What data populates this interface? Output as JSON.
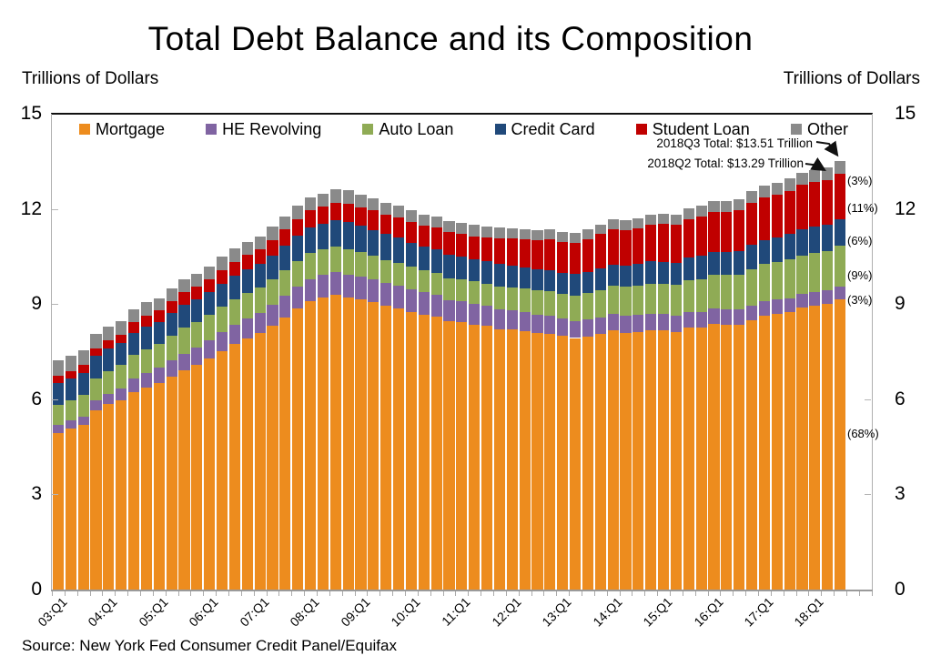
{
  "header": {
    "title": "Total Debt Balance and its Composition",
    "left_axis_label": "Trillions of Dollars",
    "right_axis_label": "Trillions of Dollars"
  },
  "source": "Source: New York Fed Consumer Credit Panel/Equifax",
  "chart_data": {
    "type": "bar",
    "stacked": true,
    "title": "Total Debt Balance and its Composition",
    "ylabel": "Trillions of Dollars",
    "ylim": [
      0,
      15
    ],
    "yticks": [
      0,
      3,
      6,
      9,
      12,
      15
    ],
    "grid": false,
    "legend_position": "top",
    "categories": [
      "03:Q1",
      "03:Q2",
      "03:Q3",
      "03:Q4",
      "04:Q1",
      "04:Q2",
      "04:Q3",
      "04:Q4",
      "05:Q1",
      "05:Q2",
      "05:Q3",
      "05:Q4",
      "06:Q1",
      "06:Q2",
      "06:Q3",
      "06:Q4",
      "07:Q1",
      "07:Q2",
      "07:Q3",
      "07:Q4",
      "08:Q1",
      "08:Q2",
      "08:Q3",
      "08:Q4",
      "09:Q1",
      "09:Q2",
      "09:Q3",
      "09:Q4",
      "10:Q1",
      "10:Q2",
      "10:Q3",
      "10:Q4",
      "11:Q1",
      "11:Q2",
      "11:Q3",
      "11:Q4",
      "12:Q1",
      "12:Q2",
      "12:Q3",
      "12:Q4",
      "13:Q1",
      "13:Q2",
      "13:Q3",
      "13:Q4",
      "14:Q1",
      "14:Q2",
      "14:Q3",
      "14:Q4",
      "15:Q1",
      "15:Q2",
      "15:Q3",
      "15:Q4",
      "16:Q1",
      "16:Q2",
      "16:Q3",
      "16:Q4",
      "17:Q1",
      "17:Q2",
      "17:Q3",
      "17:Q4",
      "18:Q1",
      "18:Q2",
      "18:Q3"
    ],
    "x_tick_labels_shown": [
      "03:Q1",
      "04:Q1",
      "05:Q1",
      "06:Q1",
      "07:Q1",
      "08:Q1",
      "09:Q1",
      "10:Q1",
      "11:Q1",
      "12:Q1",
      "13:Q1",
      "14:Q1",
      "15:Q1",
      "16:Q1",
      "17:Q1",
      "18:Q1"
    ],
    "series": [
      {
        "name": "Mortgage",
        "color": "#ED8C1E",
        "share_label": "(68%)",
        "values": [
          4.94,
          5.08,
          5.18,
          5.66,
          5.84,
          5.97,
          6.21,
          6.36,
          6.5,
          6.7,
          6.9,
          7.07,
          7.29,
          7.52,
          7.73,
          7.92,
          8.1,
          8.33,
          8.58,
          8.85,
          9.09,
          9.2,
          9.29,
          9.22,
          9.15,
          9.06,
          8.94,
          8.85,
          8.76,
          8.67,
          8.61,
          8.45,
          8.43,
          8.36,
          8.31,
          8.21,
          8.19,
          8.15,
          8.09,
          8.06,
          7.99,
          7.93,
          7.98,
          8.05,
          8.17,
          8.1,
          8.13,
          8.17,
          8.17,
          8.12,
          8.26,
          8.25,
          8.37,
          8.36,
          8.35,
          8.48,
          8.63,
          8.69,
          8.74,
          8.88,
          8.94,
          9.0,
          9.14
        ]
      },
      {
        "name": "HE Revolving",
        "color": "#8064A2",
        "share_label": "(3%)",
        "values": [
          0.24,
          0.26,
          0.27,
          0.3,
          0.33,
          0.37,
          0.43,
          0.47,
          0.5,
          0.53,
          0.54,
          0.56,
          0.57,
          0.59,
          0.61,
          0.62,
          0.63,
          0.65,
          0.67,
          0.69,
          0.7,
          0.71,
          0.71,
          0.71,
          0.71,
          0.71,
          0.72,
          0.72,
          0.71,
          0.7,
          0.69,
          0.67,
          0.66,
          0.64,
          0.63,
          0.62,
          0.61,
          0.59,
          0.57,
          0.56,
          0.55,
          0.54,
          0.53,
          0.53,
          0.53,
          0.53,
          0.52,
          0.51,
          0.51,
          0.5,
          0.49,
          0.49,
          0.49,
          0.48,
          0.47,
          0.47,
          0.46,
          0.45,
          0.45,
          0.44,
          0.44,
          0.43,
          0.42
        ]
      },
      {
        "name": "Auto Loan",
        "color": "#8FAB55",
        "share_label": "(9%)",
        "values": [
          0.64,
          0.62,
          0.68,
          0.7,
          0.72,
          0.74,
          0.75,
          0.73,
          0.73,
          0.77,
          0.81,
          0.79,
          0.79,
          0.81,
          0.81,
          0.81,
          0.79,
          0.81,
          0.82,
          0.82,
          0.82,
          0.81,
          0.81,
          0.79,
          0.77,
          0.75,
          0.73,
          0.72,
          0.7,
          0.69,
          0.69,
          0.7,
          0.7,
          0.71,
          0.71,
          0.73,
          0.73,
          0.75,
          0.77,
          0.78,
          0.79,
          0.8,
          0.83,
          0.86,
          0.88,
          0.91,
          0.93,
          0.96,
          0.97,
          0.99,
          1.01,
          1.05,
          1.07,
          1.08,
          1.1,
          1.14,
          1.17,
          1.19,
          1.21,
          1.22,
          1.23,
          1.24,
          1.27
        ]
      },
      {
        "name": "Credit Card",
        "color": "#20497A",
        "share_label": "(6%)",
        "values": [
          0.69,
          0.69,
          0.69,
          0.7,
          0.7,
          0.7,
          0.71,
          0.72,
          0.71,
          0.72,
          0.74,
          0.73,
          0.72,
          0.73,
          0.74,
          0.75,
          0.74,
          0.75,
          0.78,
          0.8,
          0.8,
          0.81,
          0.83,
          0.87,
          0.84,
          0.82,
          0.81,
          0.81,
          0.76,
          0.74,
          0.73,
          0.73,
          0.7,
          0.69,
          0.69,
          0.7,
          0.68,
          0.67,
          0.67,
          0.68,
          0.66,
          0.67,
          0.67,
          0.68,
          0.66,
          0.67,
          0.68,
          0.7,
          0.68,
          0.7,
          0.71,
          0.73,
          0.71,
          0.73,
          0.75,
          0.78,
          0.76,
          0.78,
          0.81,
          0.83,
          0.82,
          0.83,
          0.84
        ]
      },
      {
        "name": "Student Loan",
        "color": "#C00000",
        "share_label": "(11%)",
        "values": [
          0.24,
          0.24,
          0.25,
          0.25,
          0.26,
          0.26,
          0.33,
          0.35,
          0.36,
          0.37,
          0.39,
          0.39,
          0.4,
          0.42,
          0.43,
          0.45,
          0.47,
          0.48,
          0.5,
          0.52,
          0.54,
          0.55,
          0.56,
          0.58,
          0.59,
          0.61,
          0.62,
          0.64,
          0.66,
          0.67,
          0.69,
          0.71,
          0.72,
          0.74,
          0.76,
          0.81,
          0.85,
          0.88,
          0.92,
          0.96,
          0.97,
          0.99,
          1.03,
          1.08,
          1.11,
          1.12,
          1.13,
          1.16,
          1.19,
          1.19,
          1.2,
          1.23,
          1.26,
          1.26,
          1.28,
          1.31,
          1.34,
          1.34,
          1.36,
          1.38,
          1.41,
          1.41,
          1.44
        ]
      },
      {
        "name": "Other",
        "color": "#8A8A8A",
        "share_label": "(3%)",
        "values": [
          0.48,
          0.49,
          0.48,
          0.45,
          0.45,
          0.42,
          0.41,
          0.42,
          0.39,
          0.4,
          0.41,
          0.42,
          0.42,
          0.44,
          0.44,
          0.41,
          0.41,
          0.42,
          0.41,
          0.41,
          0.42,
          0.41,
          0.41,
          0.41,
          0.39,
          0.38,
          0.37,
          0.37,
          0.36,
          0.36,
          0.35,
          0.36,
          0.35,
          0.35,
          0.35,
          0.35,
          0.33,
          0.32,
          0.31,
          0.32,
          0.3,
          0.31,
          0.31,
          0.31,
          0.32,
          0.32,
          0.32,
          0.33,
          0.32,
          0.33,
          0.34,
          0.35,
          0.34,
          0.35,
          0.36,
          0.37,
          0.37,
          0.38,
          0.38,
          0.39,
          0.39,
          0.39,
          0.39
        ]
      }
    ],
    "annotations": [
      {
        "text": "2018Q3 Total: $13.51 Trillion",
        "points_to": "2018Q3"
      },
      {
        "text": "2018Q2 Total: $13.29 Trillion",
        "points_to": "2018Q2"
      }
    ]
  }
}
